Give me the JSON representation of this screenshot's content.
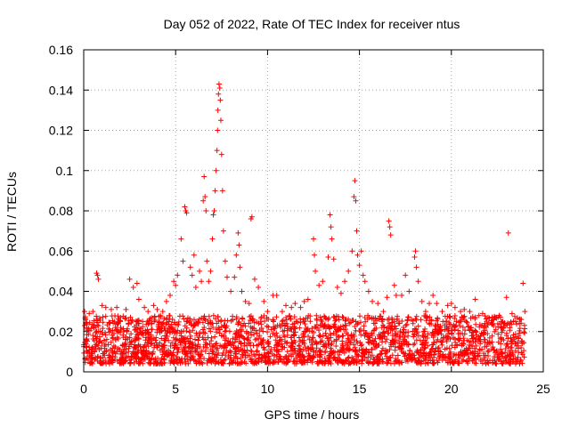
{
  "chart_data": {
    "type": "scatter",
    "title": "Day 052 of 2022, Rate Of TEC Index for receiver ntus",
    "xlabel": "GPS time / hours",
    "ylabel": "ROTI / TECUs",
    "xlim": [
      0,
      25
    ],
    "ylim": [
      0,
      0.16
    ],
    "x_ticks": [
      "0",
      "5",
      "10",
      "15",
      "20",
      "25"
    ],
    "y_ticks": [
      "0",
      "0.02",
      "0.04",
      "0.06",
      "0.08",
      "0.1",
      "0.12",
      "0.14",
      "0.16"
    ],
    "grid": true,
    "marker": "+",
    "color": "#ff0000",
    "baseline_band": {
      "x_range": [
        0,
        24
      ],
      "y_range": [
        0.004,
        0.028
      ]
    },
    "points": [
      [
        0.05,
        0.03
      ],
      [
        0.1,
        0.026
      ],
      [
        0.3,
        0.029
      ],
      [
        0.5,
        0.03
      ],
      [
        0.7,
        0.049
      ],
      [
        0.75,
        0.048
      ],
      [
        0.8,
        0.046
      ],
      [
        1.0,
        0.033
      ],
      [
        1.2,
        0.032
      ],
      [
        1.5,
        0.031
      ],
      [
        1.8,
        0.032
      ],
      [
        2.0,
        0.027
      ],
      [
        2.3,
        0.031
      ],
      [
        2.5,
        0.046
      ],
      [
        2.7,
        0.042
      ],
      [
        2.9,
        0.044
      ],
      [
        3.0,
        0.036
      ],
      [
        3.3,
        0.032
      ],
      [
        3.5,
        0.03
      ],
      [
        3.8,
        0.033
      ],
      [
        4.0,
        0.031
      ],
      [
        4.3,
        0.03
      ],
      [
        4.5,
        0.035
      ],
      [
        4.7,
        0.038
      ],
      [
        4.9,
        0.045
      ],
      [
        5.0,
        0.043
      ],
      [
        5.1,
        0.048
      ],
      [
        5.3,
        0.066
      ],
      [
        5.4,
        0.055
      ],
      [
        5.5,
        0.082
      ],
      [
        5.55,
        0.08
      ],
      [
        5.6,
        0.079
      ],
      [
        5.8,
        0.052
      ],
      [
        5.9,
        0.048
      ],
      [
        6.0,
        0.058
      ],
      [
        6.1,
        0.042
      ],
      [
        6.3,
        0.05
      ],
      [
        6.4,
        0.045
      ],
      [
        6.5,
        0.085
      ],
      [
        6.55,
        0.097
      ],
      [
        6.6,
        0.087
      ],
      [
        6.65,
        0.08
      ],
      [
        6.7,
        0.055
      ],
      [
        6.8,
        0.045
      ],
      [
        6.9,
        0.05
      ],
      [
        7.0,
        0.066
      ],
      [
        7.05,
        0.078
      ],
      [
        7.1,
        0.08
      ],
      [
        7.15,
        0.09
      ],
      [
        7.2,
        0.1
      ],
      [
        7.25,
        0.11
      ],
      [
        7.28,
        0.12
      ],
      [
        7.3,
        0.13
      ],
      [
        7.33,
        0.138
      ],
      [
        7.36,
        0.143
      ],
      [
        7.4,
        0.141
      ],
      [
        7.43,
        0.135
      ],
      [
        7.46,
        0.125
      ],
      [
        7.5,
        0.108
      ],
      [
        7.55,
        0.09
      ],
      [
        7.6,
        0.07
      ],
      [
        7.7,
        0.055
      ],
      [
        7.8,
        0.047
      ],
      [
        8.0,
        0.04
      ],
      [
        8.2,
        0.047
      ],
      [
        8.3,
        0.058
      ],
      [
        8.4,
        0.069
      ],
      [
        8.45,
        0.063
      ],
      [
        8.5,
        0.052
      ],
      [
        8.6,
        0.04
      ],
      [
        8.8,
        0.035
      ],
      [
        9.0,
        0.034
      ],
      [
        9.1,
        0.076
      ],
      [
        9.15,
        0.077
      ],
      [
        9.3,
        0.046
      ],
      [
        9.5,
        0.042
      ],
      [
        9.8,
        0.035
      ],
      [
        10.0,
        0.03
      ],
      [
        10.3,
        0.038
      ],
      [
        10.5,
        0.038
      ],
      [
        10.8,
        0.03
      ],
      [
        11.0,
        0.033
      ],
      [
        11.3,
        0.032
      ],
      [
        11.5,
        0.034
      ],
      [
        11.8,
        0.032
      ],
      [
        12.0,
        0.035
      ],
      [
        12.2,
        0.036
      ],
      [
        12.5,
        0.066
      ],
      [
        12.55,
        0.058
      ],
      [
        12.6,
        0.05
      ],
      [
        12.8,
        0.043
      ],
      [
        13.0,
        0.045
      ],
      [
        13.3,
        0.057
      ],
      [
        13.4,
        0.078
      ],
      [
        13.45,
        0.072
      ],
      [
        13.5,
        0.066
      ],
      [
        13.6,
        0.056
      ],
      [
        13.8,
        0.042
      ],
      [
        14.0,
        0.039
      ],
      [
        14.2,
        0.045
      ],
      [
        14.4,
        0.05
      ],
      [
        14.6,
        0.06
      ],
      [
        14.7,
        0.087
      ],
      [
        14.75,
        0.095
      ],
      [
        14.8,
        0.085
      ],
      [
        14.85,
        0.07
      ],
      [
        14.9,
        0.058
      ],
      [
        15.0,
        0.053
      ],
      [
        15.1,
        0.06
      ],
      [
        15.2,
        0.048
      ],
      [
        15.3,
        0.045
      ],
      [
        15.5,
        0.04
      ],
      [
        15.7,
        0.035
      ],
      [
        16.0,
        0.034
      ],
      [
        16.3,
        0.03
      ],
      [
        16.5,
        0.037
      ],
      [
        16.6,
        0.075
      ],
      [
        16.65,
        0.072
      ],
      [
        16.7,
        0.068
      ],
      [
        16.9,
        0.043
      ],
      [
        17.0,
        0.038
      ],
      [
        17.3,
        0.038
      ],
      [
        17.5,
        0.048
      ],
      [
        17.7,
        0.04
      ],
      [
        18.0,
        0.057
      ],
      [
        18.05,
        0.06
      ],
      [
        18.1,
        0.052
      ],
      [
        18.2,
        0.045
      ],
      [
        18.4,
        0.035
      ],
      [
        18.6,
        0.03
      ],
      [
        18.8,
        0.034
      ],
      [
        19.0,
        0.038
      ],
      [
        19.2,
        0.034
      ],
      [
        19.5,
        0.03
      ],
      [
        19.8,
        0.033
      ],
      [
        20.0,
        0.034
      ],
      [
        20.2,
        0.032
      ],
      [
        20.5,
        0.03
      ],
      [
        20.7,
        0.031
      ],
      [
        21.0,
        0.03
      ],
      [
        21.3,
        0.036
      ],
      [
        21.5,
        0.028
      ],
      [
        21.7,
        0.029
      ],
      [
        22.0,
        0.027
      ],
      [
        22.3,
        0.026
      ],
      [
        22.6,
        0.028
      ],
      [
        22.8,
        0.025
      ],
      [
        23.0,
        0.037
      ],
      [
        23.1,
        0.069
      ],
      [
        23.3,
        0.029
      ],
      [
        23.5,
        0.025
      ],
      [
        23.7,
        0.024
      ],
      [
        23.9,
        0.044
      ],
      [
        24.0,
        0.03
      ]
    ]
  }
}
